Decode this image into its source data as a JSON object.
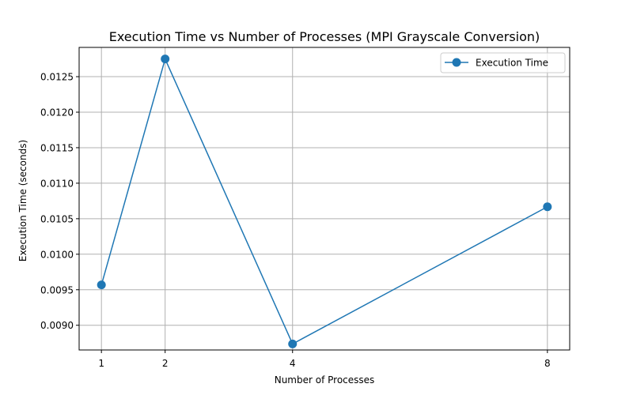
{
  "chart_data": {
    "type": "line",
    "title": "Execution Time vs Number of Processes (MPI Grayscale Conversion)",
    "xlabel": "Number of Processes",
    "ylabel": "Execution Time (seconds)",
    "x": [
      1,
      2,
      4,
      8
    ],
    "x_ticks": [
      "1",
      "2",
      "4",
      "8"
    ],
    "y_ticks": [
      "0.0090",
      "0.0095",
      "0.0100",
      "0.0105",
      "0.0110",
      "0.0115",
      "0.0120",
      "0.0125"
    ],
    "y_tick_values": [
      0.009,
      0.0095,
      0.01,
      0.0105,
      0.011,
      0.0115,
      0.012,
      0.0125
    ],
    "xlim": [
      0.65,
      8.35
    ],
    "ylim": [
      0.008652,
      0.012912
    ],
    "grid": true,
    "legend_position": "top-right",
    "series": [
      {
        "name": "Execution Time",
        "color": "#1f77b4",
        "marker": "circle",
        "values": [
          0.009568,
          0.012749,
          0.008737,
          0.010668
        ]
      }
    ]
  }
}
